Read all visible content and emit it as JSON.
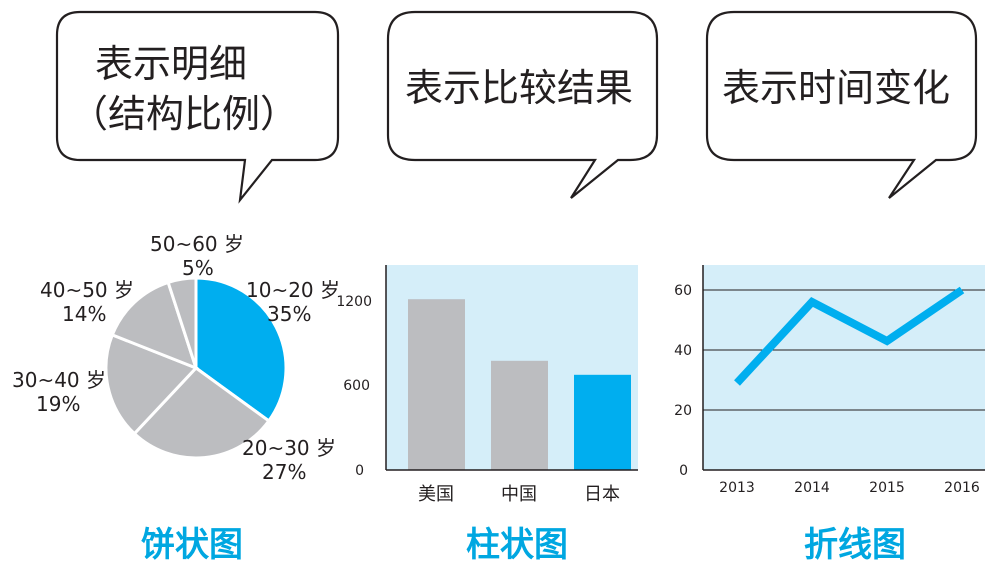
{
  "bubbles": [
    {
      "line1": "表示明细",
      "line2": "（结构比例）"
    },
    {
      "line1": "表示比较结果"
    },
    {
      "line1": "表示时间变化"
    }
  ],
  "captions": {
    "pie": "饼状图",
    "bar": "柱状图",
    "line": "折线图"
  },
  "colors": {
    "accent": "#00aeef",
    "gray": "#bcbdc0",
    "panel": "#d5eef9",
    "text": "#231f20",
    "caption": "#00a7e1"
  },
  "chart_data": [
    {
      "type": "pie",
      "slices": [
        {
          "label": "10~20 岁",
          "pct": "35%",
          "value": 35,
          "highlight": true
        },
        {
          "label": "20~30 岁",
          "pct": "27%",
          "value": 27
        },
        {
          "label": "30~40 岁",
          "pct": "19%",
          "value": 19
        },
        {
          "label": "40~50 岁",
          "pct": "14%",
          "value": 14
        },
        {
          "label": "50~60 岁",
          "pct": "5%",
          "value": 5
        }
      ]
    },
    {
      "type": "bar",
      "categories": [
        "美国",
        "中国",
        "日本"
      ],
      "values": [
        1220,
        780,
        680
      ],
      "highlight_index": 2,
      "yticks": [
        "0",
        "600",
        "1200"
      ],
      "ylim": [
        0,
        1200
      ],
      "grid": false
    },
    {
      "type": "line",
      "x": [
        "2013",
        "2014",
        "2015",
        "2016"
      ],
      "values": [
        29,
        56,
        43,
        60
      ],
      "yticks": [
        "0",
        "20",
        "40",
        "60"
      ],
      "ylim": [
        0,
        60
      ],
      "grid": true
    }
  ]
}
